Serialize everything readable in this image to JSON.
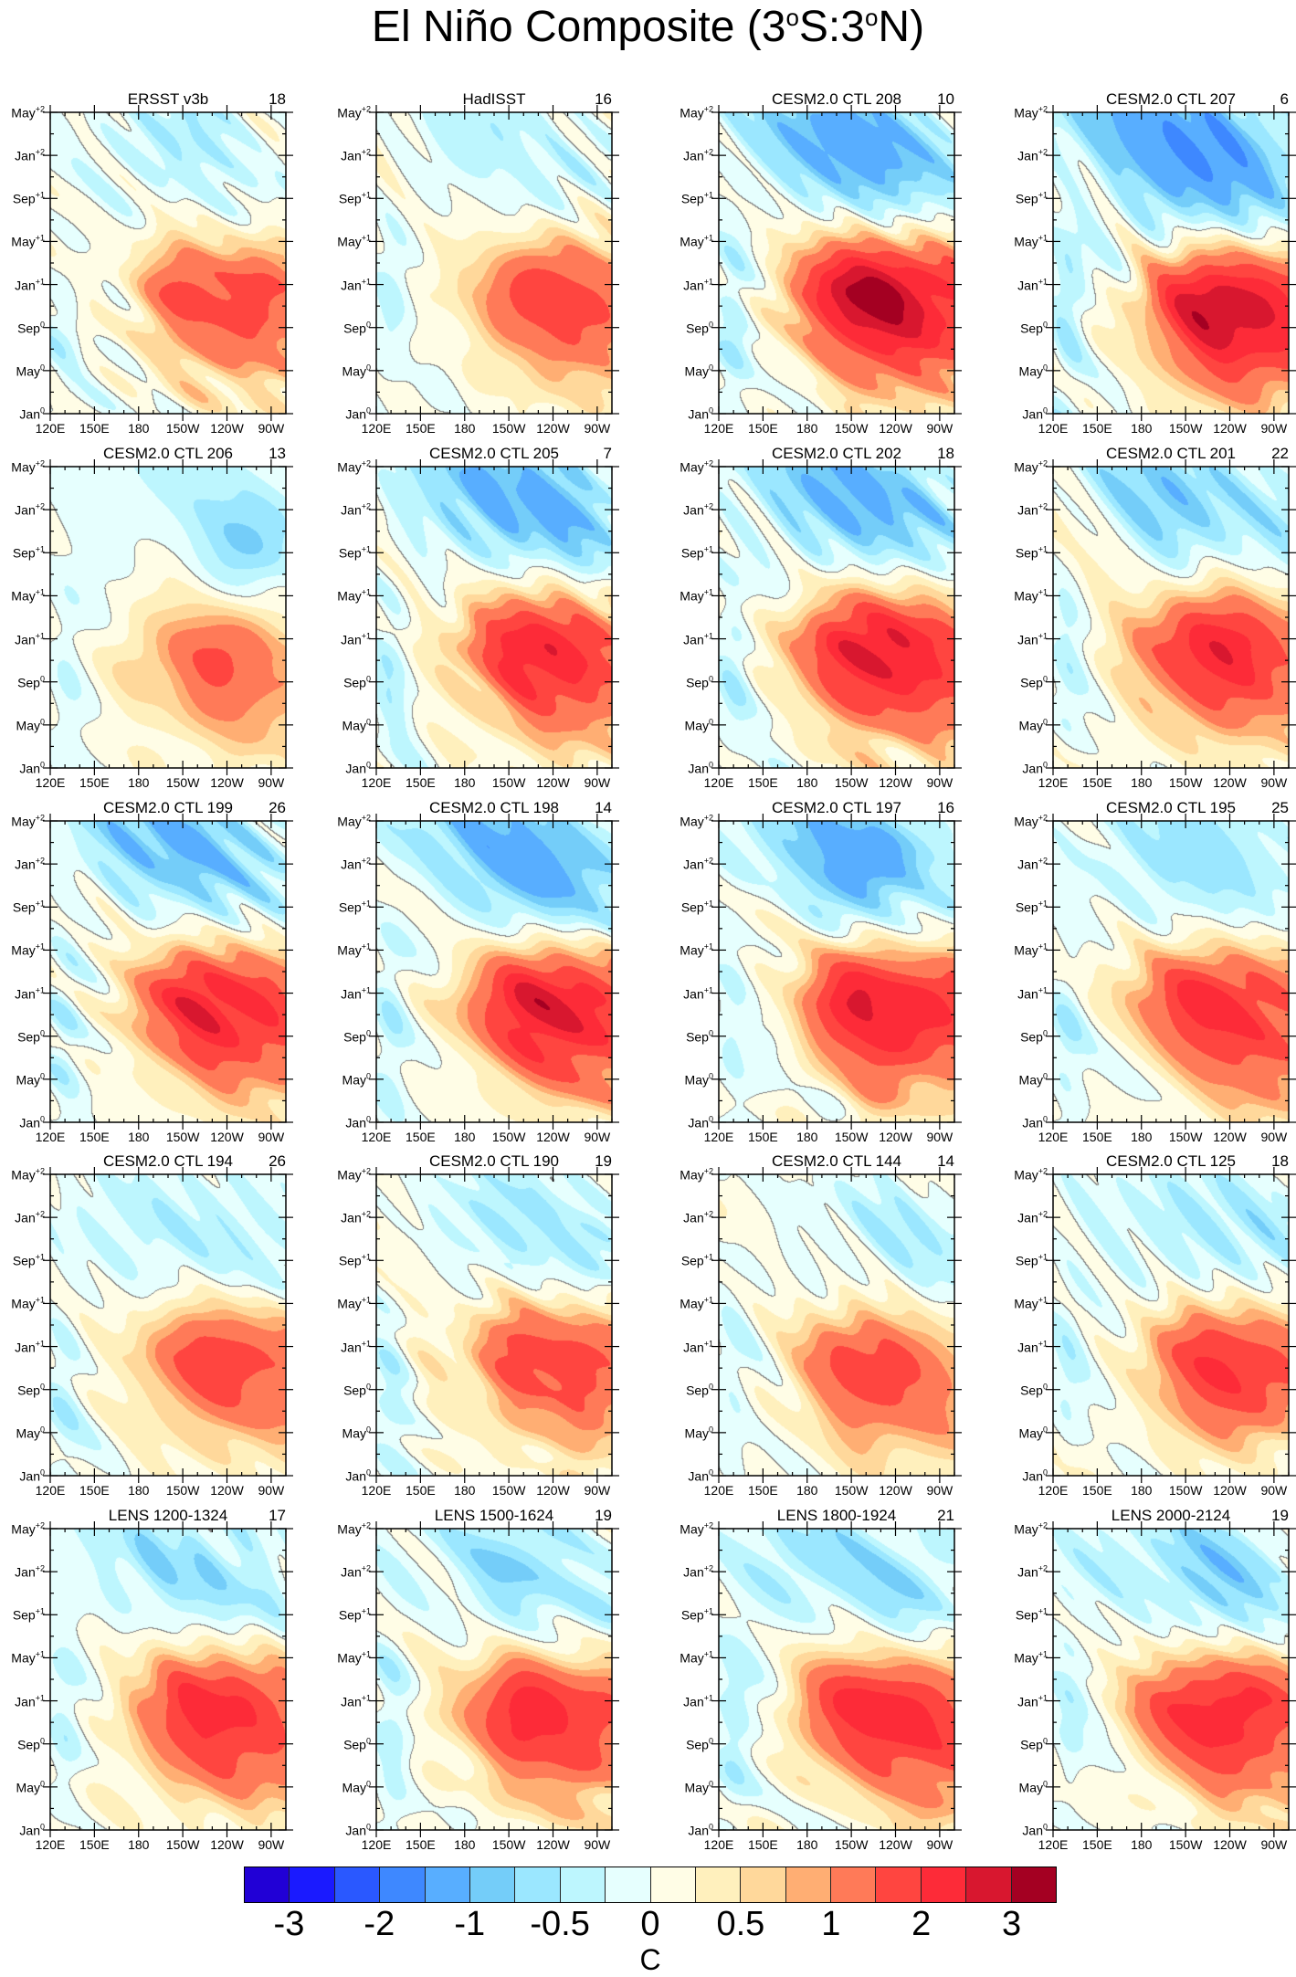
{
  "title": {
    "pre": "El Niño Composite (3",
    "sup1": "o",
    "mid": "S:3",
    "sup2": "o",
    "post": "N)"
  },
  "chart_data": {
    "type": "heatmap",
    "x_ticks": [
      "120E",
      "150E",
      "180",
      "150W",
      "120W",
      "90W"
    ],
    "x_tick_values": [
      120,
      150,
      180,
      210,
      240,
      270
    ],
    "x_range": [
      120,
      280
    ],
    "y_ticks": [
      {
        "m": "Jan",
        "s": "0"
      },
      {
        "m": "May",
        "s": "0"
      },
      {
        "m": "Sep",
        "s": "0"
      },
      {
        "m": "Jan",
        "s": "+1"
      },
      {
        "m": "May",
        "s": "+1"
      },
      {
        "m": "Sep",
        "s": "+1"
      },
      {
        "m": "Jan",
        "s": "+2"
      },
      {
        "m": "May",
        "s": "+2"
      }
    ],
    "y_range": [
      "Jan0",
      "May+2"
    ],
    "colorbar": {
      "levels": [
        -3,
        -2.5,
        -2,
        -1.5,
        -1,
        -0.75,
        -0.5,
        -0.25,
        0,
        0.25,
        0.5,
        0.75,
        1,
        1.5,
        2,
        2.5,
        3
      ],
      "labels": [
        "-3",
        "-2",
        "-1",
        "-0.5",
        "0",
        "0.5",
        "1",
        "2",
        "3"
      ],
      "colors": [
        "#2100d6",
        "#1a1aff",
        "#2a58ff",
        "#3e88ff",
        "#58aeff",
        "#74cdf9",
        "#9be7ff",
        "#bdf6fe",
        "#e6fffe",
        "#fffde6",
        "#fff0bd",
        "#ffd89b",
        "#ffae73",
        "#ff7a58",
        "#ff4540",
        "#fd2b38",
        "#d8172f",
        "#a40022"
      ],
      "unit": "C"
    },
    "panels": [
      {
        "title": "ERSST v3b",
        "count": "18",
        "warm_peak": 1.8,
        "warm_center": {
          "lon": 225,
          "time": "Dec0"
        },
        "cold_peak": -0.45,
        "cold_center": {
          "lon": 215,
          "time": "Feb+2"
        }
      },
      {
        "title": "HadISST",
        "count": "16",
        "warm_peak": 1.8,
        "warm_center": {
          "lon": 228,
          "time": "Dec0"
        },
        "cold_peak": -0.45,
        "cold_center": {
          "lon": 215,
          "time": "Feb+2"
        }
      },
      {
        "title": "CESM2.0 CTL 208",
        "count": "10",
        "warm_peak": 3.1,
        "warm_center": {
          "lon": 215,
          "time": "Dec0"
        },
        "cold_peak": -1.4,
        "cold_center": {
          "lon": 210,
          "time": "Feb+2"
        }
      },
      {
        "title": "CESM2.0 CTL 207",
        "count": "6",
        "warm_peak": 3.0,
        "warm_center": {
          "lon": 225,
          "time": "Nov0"
        },
        "cold_peak": -1.6,
        "cold_center": {
          "lon": 205,
          "time": "Feb+2"
        }
      },
      {
        "title": "CESM2.0 CTL 206",
        "count": "13",
        "warm_peak": 1.4,
        "warm_center": {
          "lon": 220,
          "time": "Nov0"
        },
        "cold_peak": -0.65,
        "cold_center": {
          "lon": 240,
          "time": "Nov+1"
        }
      },
      {
        "title": "CESM2.0 CTL 205",
        "count": "7",
        "warm_peak": 2.3,
        "warm_center": {
          "lon": 220,
          "time": "Dec0"
        },
        "cold_peak": -1.3,
        "cold_center": {
          "lon": 215,
          "time": "Feb+2"
        }
      },
      {
        "title": "CESM2.0 CTL 202",
        "count": "18",
        "warm_peak": 2.6,
        "warm_center": {
          "lon": 215,
          "time": "Dec0"
        },
        "cold_peak": -1.3,
        "cold_center": {
          "lon": 210,
          "time": "Feb+2"
        }
      },
      {
        "title": "CESM2.0 CTL 201",
        "count": "22",
        "warm_peak": 2.2,
        "warm_center": {
          "lon": 220,
          "time": "Dec0"
        },
        "cold_peak": -0.9,
        "cold_center": {
          "lon": 215,
          "time": "Feb+2"
        }
      },
      {
        "title": "CESM2.0 CTL 199",
        "count": "26",
        "warm_peak": 2.4,
        "warm_center": {
          "lon": 220,
          "time": "Dec0"
        },
        "cold_peak": -1.2,
        "cold_center": {
          "lon": 205,
          "time": "Mar+2"
        }
      },
      {
        "title": "CESM2.0 CTL 198",
        "count": "14",
        "warm_peak": 2.6,
        "warm_center": {
          "lon": 225,
          "time": "Dec0"
        },
        "cold_peak": -1.4,
        "cold_center": {
          "lon": 215,
          "time": "Feb+2"
        }
      },
      {
        "title": "CESM2.0 CTL 197",
        "count": "16",
        "warm_peak": 2.6,
        "warm_center": {
          "lon": 220,
          "time": "Dec0"
        },
        "cold_peak": -1.3,
        "cold_center": {
          "lon": 210,
          "time": "Feb+2"
        }
      },
      {
        "title": "CESM2.0 CTL 195",
        "count": "25",
        "warm_peak": 2.3,
        "warm_center": {
          "lon": 220,
          "time": "Dec0"
        },
        "cold_peak": -0.8,
        "cold_center": {
          "lon": 215,
          "time": "Feb+2"
        }
      },
      {
        "title": "CESM2.0 CTL 194",
        "count": "26",
        "warm_peak": 1.8,
        "warm_center": {
          "lon": 225,
          "time": "Dec0"
        },
        "cold_peak": -0.45,
        "cold_center": {
          "lon": 225,
          "time": "Dec+1"
        }
      },
      {
        "title": "CESM2.0 CTL 190",
        "count": "19",
        "warm_peak": 1.8,
        "warm_center": {
          "lon": 225,
          "time": "Dec0"
        },
        "cold_peak": -0.6,
        "cold_center": {
          "lon": 230,
          "time": "Dec+1"
        }
      },
      {
        "title": "CESM2.0 CTL 144",
        "count": "14",
        "warm_peak": 1.7,
        "warm_center": {
          "lon": 215,
          "time": "Nov0"
        },
        "cold_peak": -0.7,
        "cold_center": {
          "lon": 240,
          "time": "Nov+1"
        }
      },
      {
        "title": "CESM2.0 CTL 125",
        "count": "18",
        "warm_peak": 1.9,
        "warm_center": {
          "lon": 225,
          "time": "Dec0"
        },
        "cold_peak": -0.6,
        "cold_center": {
          "lon": 235,
          "time": "Dec+1"
        }
      },
      {
        "title": "LENS 1200-1324",
        "count": "17",
        "warm_peak": 2.3,
        "warm_center": {
          "lon": 220,
          "time": "Dec0"
        },
        "cold_peak": -0.8,
        "cold_center": {
          "lon": 215,
          "time": "Jan+2"
        }
      },
      {
        "title": "LENS 1500-1624",
        "count": "19",
        "warm_peak": 2.2,
        "warm_center": {
          "lon": 220,
          "time": "Dec0"
        },
        "cold_peak": -0.75,
        "cold_center": {
          "lon": 220,
          "time": "Jan+2"
        }
      },
      {
        "title": "LENS 1800-1924",
        "count": "21",
        "warm_peak": 2.4,
        "warm_center": {
          "lon": 220,
          "time": "Dec0"
        },
        "cold_peak": -0.9,
        "cold_center": {
          "lon": 215,
          "time": "Jan+2"
        }
      },
      {
        "title": "LENS 2000-2124",
        "count": "19",
        "warm_peak": 2.3,
        "warm_center": {
          "lon": 220,
          "time": "Dec0"
        },
        "cold_peak": -0.85,
        "cold_center": {
          "lon": 215,
          "time": "Jan+2"
        }
      }
    ]
  }
}
